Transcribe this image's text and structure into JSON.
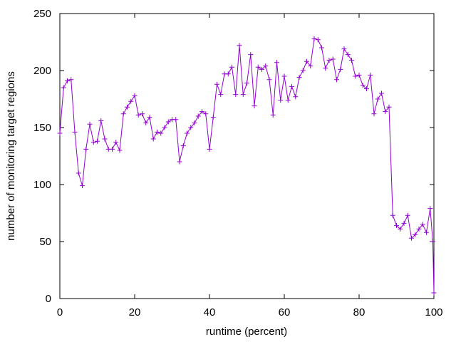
{
  "chart_data": {
    "type": "line",
    "xlabel": "runtime (percent)",
    "ylabel": "number of monitoring target regions",
    "x": [
      0,
      1,
      2,
      3,
      4,
      5,
      6,
      7,
      8,
      9,
      10,
      11,
      12,
      13,
      14,
      15,
      16,
      17,
      18,
      19,
      20,
      21,
      22,
      23,
      24,
      25,
      26,
      27,
      28,
      29,
      30,
      31,
      32,
      33,
      34,
      35,
      36,
      37,
      38,
      39,
      40,
      41,
      42,
      43,
      44,
      45,
      46,
      47,
      48,
      49,
      50,
      51,
      52,
      53,
      54,
      55,
      56,
      57,
      58,
      59,
      60,
      61,
      62,
      63,
      64,
      65,
      66,
      67,
      68,
      69,
      70,
      71,
      72,
      73,
      74,
      75,
      76,
      77,
      78,
      79,
      80,
      81,
      82,
      83,
      84,
      85,
      86,
      87,
      88,
      89,
      90,
      91,
      92,
      93,
      94,
      95,
      96,
      97,
      98,
      99,
      99.7,
      100
    ],
    "series": [
      {
        "name": null,
        "color": "#9400d3",
        "values": [
          145,
          185,
          191,
          192,
          146,
          110,
          99,
          131,
          153,
          137,
          138,
          156,
          140,
          131,
          131,
          137,
          130,
          162,
          168,
          173,
          178,
          161,
          162,
          154,
          159,
          140,
          146,
          145,
          150,
          155,
          157,
          157,
          120,
          134,
          145,
          150,
          154,
          160,
          164,
          162,
          131,
          159,
          188,
          179,
          197,
          197,
          203,
          179,
          222,
          179,
          189,
          214,
          169,
          203,
          201,
          204,
          192,
          161,
          207,
          174,
          195,
          174,
          186,
          177,
          194,
          200,
          208,
          204,
          228,
          227,
          220,
          202,
          209,
          210,
          192,
          201,
          219,
          214,
          209,
          195,
          196,
          187,
          184,
          196,
          162,
          175,
          180,
          164,
          168,
          73,
          64,
          61,
          66,
          73,
          53,
          56,
          61,
          65,
          58,
          79,
          50,
          5
        ]
      }
    ],
    "xlim": [
      0,
      100
    ],
    "xticks": [
      0,
      20,
      40,
      60,
      80,
      100
    ],
    "ylim": [
      0,
      250
    ],
    "yticks": [
      0,
      50,
      100,
      150,
      200,
      250
    ]
  }
}
